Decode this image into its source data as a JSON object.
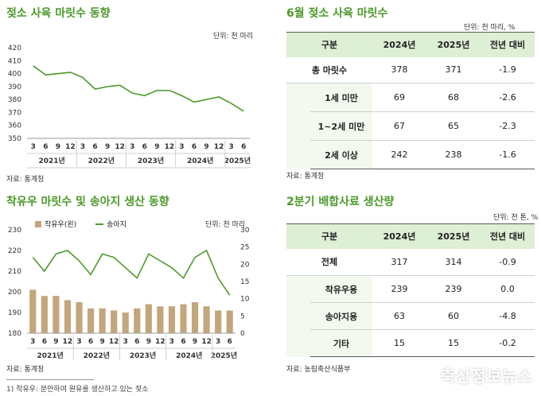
{
  "chart1": {
    "title": "젖소 사육 마릿수 동향",
    "unit": "단위: 천 마리",
    "source": "자료: 통계청",
    "chart_data": {
      "type": "line",
      "x": [
        "3",
        "6",
        "9",
        "12",
        "3",
        "6",
        "9",
        "12",
        "3",
        "6",
        "9",
        "12",
        "3",
        "6",
        "9",
        "12",
        "3",
        "6"
      ],
      "year_labels": [
        "2021년",
        "2022년",
        "2023년",
        "2024년",
        "2025년"
      ],
      "series": [
        {
          "values": [
            406,
            399,
            400,
            401,
            397,
            388,
            390,
            391,
            385,
            383,
            387,
            387,
            383,
            378,
            380,
            382,
            377,
            371
          ]
        }
      ],
      "yticks": [
        350,
        360,
        370,
        380,
        390,
        400,
        410,
        420
      ],
      "ylim": [
        350,
        420
      ],
      "color": "#4c9a2a"
    }
  },
  "chart2": {
    "title": "착유우 마릿수 및 송아지 생산 동향",
    "unit": "단위: 천 마리",
    "source": "자료: 통계청",
    "footnote": "1) 착유우: 분만하여 원유를 생산하고 있는 젖소",
    "legend": {
      "bar": "착유우(왼)",
      "line": "송아지"
    },
    "chart_data": {
      "type": "bar",
      "x": [
        "3",
        "6",
        "9",
        "12",
        "3",
        "6",
        "9",
        "12",
        "3",
        "6",
        "9",
        "12",
        "3",
        "6",
        "9",
        "12",
        "3",
        "6"
      ],
      "year_labels": [
        "2021년",
        "2022년",
        "2023년",
        "2024년",
        "2025년"
      ],
      "series": [
        {
          "name": "착유우(왼)",
          "type": "bar",
          "axis": "left",
          "values": [
            201,
            198,
            198,
            196,
            195,
            192,
            192,
            191,
            190,
            192,
            194,
            193,
            193,
            194,
            195,
            193,
            191,
            191
          ]
        },
        {
          "name": "송아지",
          "type": "line",
          "axis": "right",
          "values": [
            22,
            18,
            23,
            24,
            21,
            17,
            23,
            22,
            19,
            16,
            23,
            21,
            19,
            16,
            22,
            24,
            16,
            11
          ]
        }
      ],
      "yticks_left": [
        180,
        190,
        200,
        210,
        220,
        230
      ],
      "ylim_left": [
        180,
        230
      ],
      "yticks_right": [
        0,
        5,
        10,
        15,
        20,
        25,
        30
      ],
      "ylim_right": [
        0,
        30
      ],
      "colors": {
        "bar": "#c4a67c",
        "line": "#4c9a2a"
      }
    }
  },
  "table1": {
    "title": "6월 젖소 사육 마릿수",
    "unit": "단위: 천 마리, %",
    "source": "자료: 통계청",
    "headers": [
      "구분",
      "2024년",
      "2025년",
      "전년 대비"
    ],
    "total": {
      "label": "총 마릿수",
      "v2024": "378",
      "v2025": "371",
      "change": "-1.9"
    },
    "rows": [
      {
        "label": "1세 미만",
        "v2024": "69",
        "v2025": "68",
        "change": "-2.6"
      },
      {
        "label": "1~2세 미만",
        "v2024": "67",
        "v2025": "65",
        "change": "-2.3"
      },
      {
        "label": "2세 이상",
        "v2024": "242",
        "v2025": "238",
        "change": "-1.6"
      }
    ]
  },
  "table2": {
    "title": "2분기 배합사료 생산량",
    "unit": "단위: 천 톤, %",
    "source": "자료: 농림축산식품부",
    "headers": [
      "구분",
      "2024년",
      "2025년",
      "전년 대비"
    ],
    "total": {
      "label": "전체",
      "v2024": "317",
      "v2025": "314",
      "change": "-0.9"
    },
    "rows": [
      {
        "label": "착유우용",
        "v2024": "239",
        "v2025": "239",
        "change": "0.0"
      },
      {
        "label": "송아지용",
        "v2024": "63",
        "v2025": "60",
        "change": "-4.8"
      },
      {
        "label": "기타",
        "v2024": "15",
        "v2025": "15",
        "change": "-0.2"
      }
    ]
  },
  "watermark": "축산정보뉴스"
}
